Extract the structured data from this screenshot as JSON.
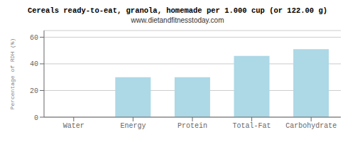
{
  "chart_data": {
    "type": "bar",
    "title": "Cereals ready-to-eat, granola, homemade per 1.000 cup (or 122.00 g)",
    "subtitle": "www.dietandfitnesstoday.com",
    "categories": [
      "Water",
      "Energy",
      "Protein",
      "Total-Fat",
      "Carbohydrate"
    ],
    "values": [
      0.0,
      30.0,
      30.0,
      46.0,
      51.0
    ],
    "color": "#add8e6",
    "ylabel": "Percentage of RDH (%)",
    "ylim": [
      0,
      65
    ],
    "yticks": [
      0,
      20,
      40,
      60
    ],
    "grid": true
  }
}
